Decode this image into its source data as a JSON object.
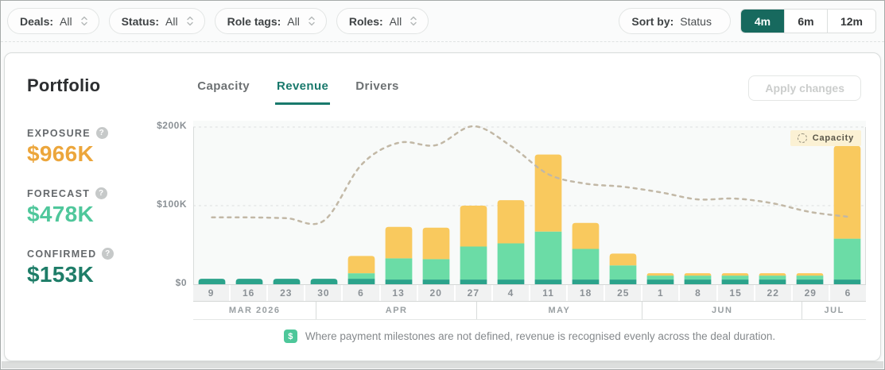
{
  "filters": [
    {
      "label": "Deals:",
      "value": "All"
    },
    {
      "label": "Status:",
      "value": "All"
    },
    {
      "label": "Role tags:",
      "value": "All"
    },
    {
      "label": "Roles:",
      "value": "All"
    }
  ],
  "sort": {
    "label": "Sort by:",
    "value": "Status"
  },
  "range_options": [
    {
      "label": "4m",
      "selected": true
    },
    {
      "label": "6m",
      "selected": false
    },
    {
      "label": "12m",
      "selected": false
    }
  ],
  "portfolio": {
    "title": "Portfolio",
    "tabs": [
      {
        "label": "Capacity",
        "active": false
      },
      {
        "label": "Revenue",
        "active": true
      },
      {
        "label": "Drivers",
        "active": false
      }
    ],
    "apply_button": "Apply changes",
    "stats": [
      {
        "label": "EXPOSURE",
        "value": "$966K",
        "color": "#eca63c"
      },
      {
        "label": "FORECAST",
        "value": "$478K",
        "color": "#4fc79b"
      },
      {
        "label": "CONFIRMED",
        "value": "$153K",
        "color": "#1e7d68"
      }
    ]
  },
  "chart_data": {
    "type": "bar",
    "stacked": true,
    "unit": "$K",
    "ylim": [
      0,
      208
    ],
    "grid": "dashed horizontal at 100K and 200K",
    "legend_position": "top-right",
    "y_ticks": [
      {
        "label": "$0",
        "value": 0
      },
      {
        "label": "$100K",
        "value": 100
      },
      {
        "label": "$200K",
        "value": 200
      }
    ],
    "categories": [
      "9",
      "16",
      "23",
      "30",
      "6",
      "13",
      "20",
      "27",
      "4",
      "11",
      "18",
      "25",
      "1",
      "8",
      "15",
      "22",
      "29",
      "6"
    ],
    "month_groups": [
      {
        "label": "MAR 2026",
        "weeks": 3.2857
      },
      {
        "label": "APR",
        "weeks": 4.2857
      },
      {
        "label": "MAY",
        "weeks": 4.4286
      },
      {
        "label": "JUN",
        "weeks": 4.2857
      },
      {
        "label": "JUL",
        "weeks": 1.7143
      }
    ],
    "series": [
      {
        "name": "Confirmed",
        "color": "#2ba38b",
        "values": [
          7,
          7,
          7,
          7,
          7,
          6,
          6,
          6,
          6,
          6,
          6,
          6,
          6,
          6,
          6,
          6,
          6,
          6
        ]
      },
      {
        "name": "Forecast",
        "color": "#6bdca6",
        "values": [
          0,
          0,
          0,
          0,
          7,
          27,
          26,
          42,
          46,
          61,
          39,
          18,
          5,
          5,
          5,
          5,
          5,
          52
        ]
      },
      {
        "name": "Exposure",
        "color": "#f9c95e",
        "values": [
          0,
          0,
          0,
          0,
          22,
          40,
          40,
          52,
          55,
          98,
          33,
          15,
          3,
          3,
          3,
          3,
          3,
          118
        ]
      }
    ],
    "capacity_line": {
      "name": "Capacity",
      "color": "#c2b8a6",
      "style": "dashed",
      "values": [
        85,
        85,
        84,
        81,
        152,
        180,
        177,
        201,
        176,
        140,
        128,
        124,
        117,
        108,
        109,
        103,
        92,
        86
      ]
    },
    "legend": {
      "label": "Capacity"
    }
  },
  "footnote": {
    "icon": "$",
    "text": "Where payment milestones are not defined, revenue is recognised evenly across the deal duration."
  }
}
